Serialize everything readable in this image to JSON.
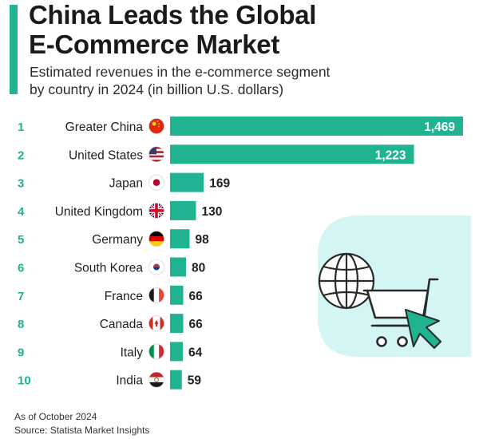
{
  "header": {
    "title_line1": "China Leads the Global",
    "title_line2": "E-Commerce Market",
    "subtitle_line1": "Estimated revenues in the e-commerce segment",
    "subtitle_line2": "by country in 2024 (in billion U.S. dollars)"
  },
  "footer": {
    "note": "As of October 2024",
    "source": "Source: Statista Market Insights"
  },
  "colors": {
    "bar": "#1fb392",
    "accent": "#1fb392",
    "rank": "#1fb392",
    "illustration_bg": "#d3f5f3",
    "illustration_line": "#2a2a2a"
  },
  "icons": [
    "globe-icon",
    "shopping-cart-icon",
    "cursor-arrow-icon"
  ],
  "chart_data": {
    "type": "bar",
    "orientation": "horizontal",
    "ranks": [
      "1",
      "2",
      "3",
      "4",
      "5",
      "6",
      "7",
      "8",
      "9",
      "10"
    ],
    "categories": [
      "Greater China",
      "United States",
      "Japan",
      "United Kingdom",
      "Germany",
      "South Korea",
      "France",
      "Canada",
      "Italy",
      "India"
    ],
    "flags": [
      "china",
      "united-states",
      "japan",
      "united-kingdom",
      "germany",
      "south-korea",
      "france",
      "canada",
      "italy",
      "india"
    ],
    "values": [
      1469,
      1223,
      169,
      130,
      98,
      80,
      66,
      66,
      64,
      59
    ],
    "value_labels": [
      "1,469",
      "1,223",
      "169",
      "130",
      "98",
      "80",
      "66",
      "66",
      "64",
      "59"
    ],
    "xlim": [
      0,
      1469
    ],
    "grid": false,
    "legend": "none"
  }
}
